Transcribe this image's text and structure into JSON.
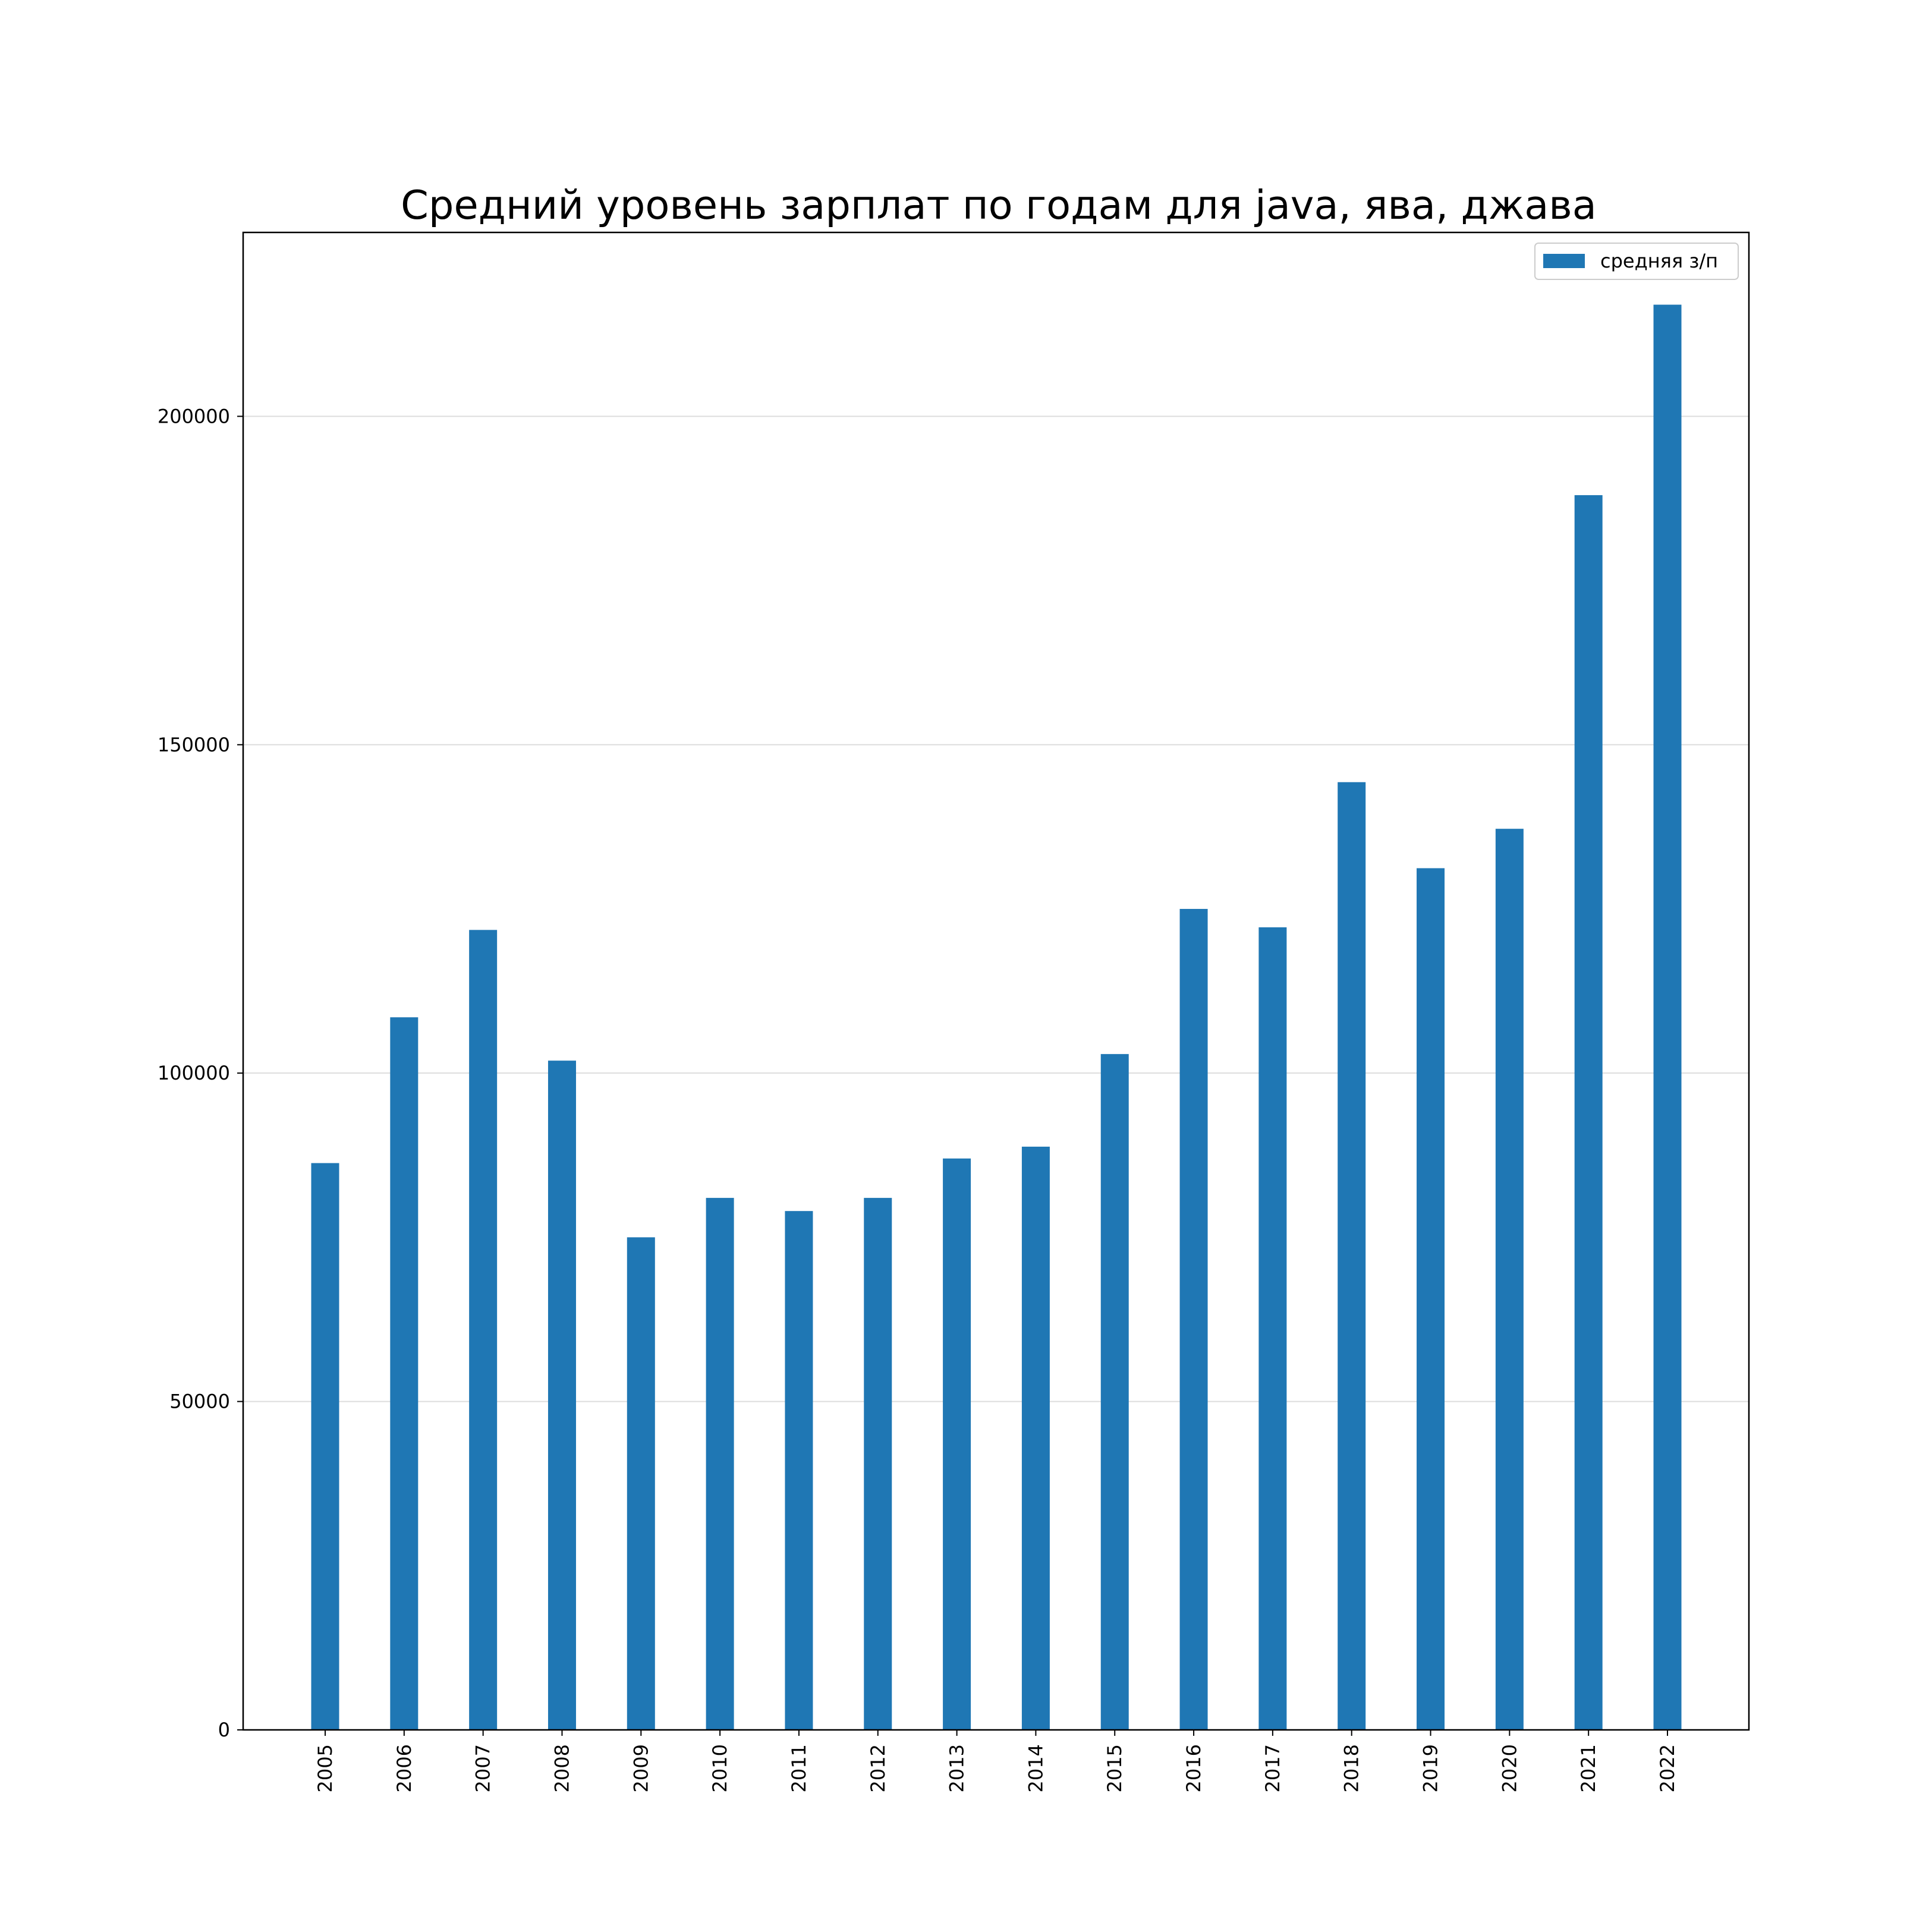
{
  "chart_data": {
    "type": "bar",
    "title": "Средний уровень зарплат по годам для java, ява, джава",
    "xlabel": "",
    "ylabel": "",
    "categories": [
      "2005",
      "2006",
      "2007",
      "2008",
      "2009",
      "2010",
      "2011",
      "2012",
      "2013",
      "2014",
      "2015",
      "2016",
      "2017",
      "2018",
      "2019",
      "2020",
      "2021",
      "2022"
    ],
    "series": [
      {
        "name": "средняя з/п",
        "color": "#1f77b4",
        "values": [
          86300,
          108500,
          121800,
          101900,
          75000,
          81000,
          79000,
          81000,
          87000,
          88800,
          102900,
          125000,
          122200,
          144300,
          131200,
          137200,
          188000,
          217000
        ]
      }
    ],
    "ylim": [
      0,
      228000
    ],
    "yticks": [
      0,
      50000,
      100000,
      150000,
      200000
    ],
    "ytick_labels": [
      "0",
      "50000",
      "100000",
      "150000",
      "200000"
    ],
    "x_tick_rotation": "vertical",
    "grid": "horizontal",
    "grid_color": "#dddddd",
    "legend_position": "upper right"
  }
}
